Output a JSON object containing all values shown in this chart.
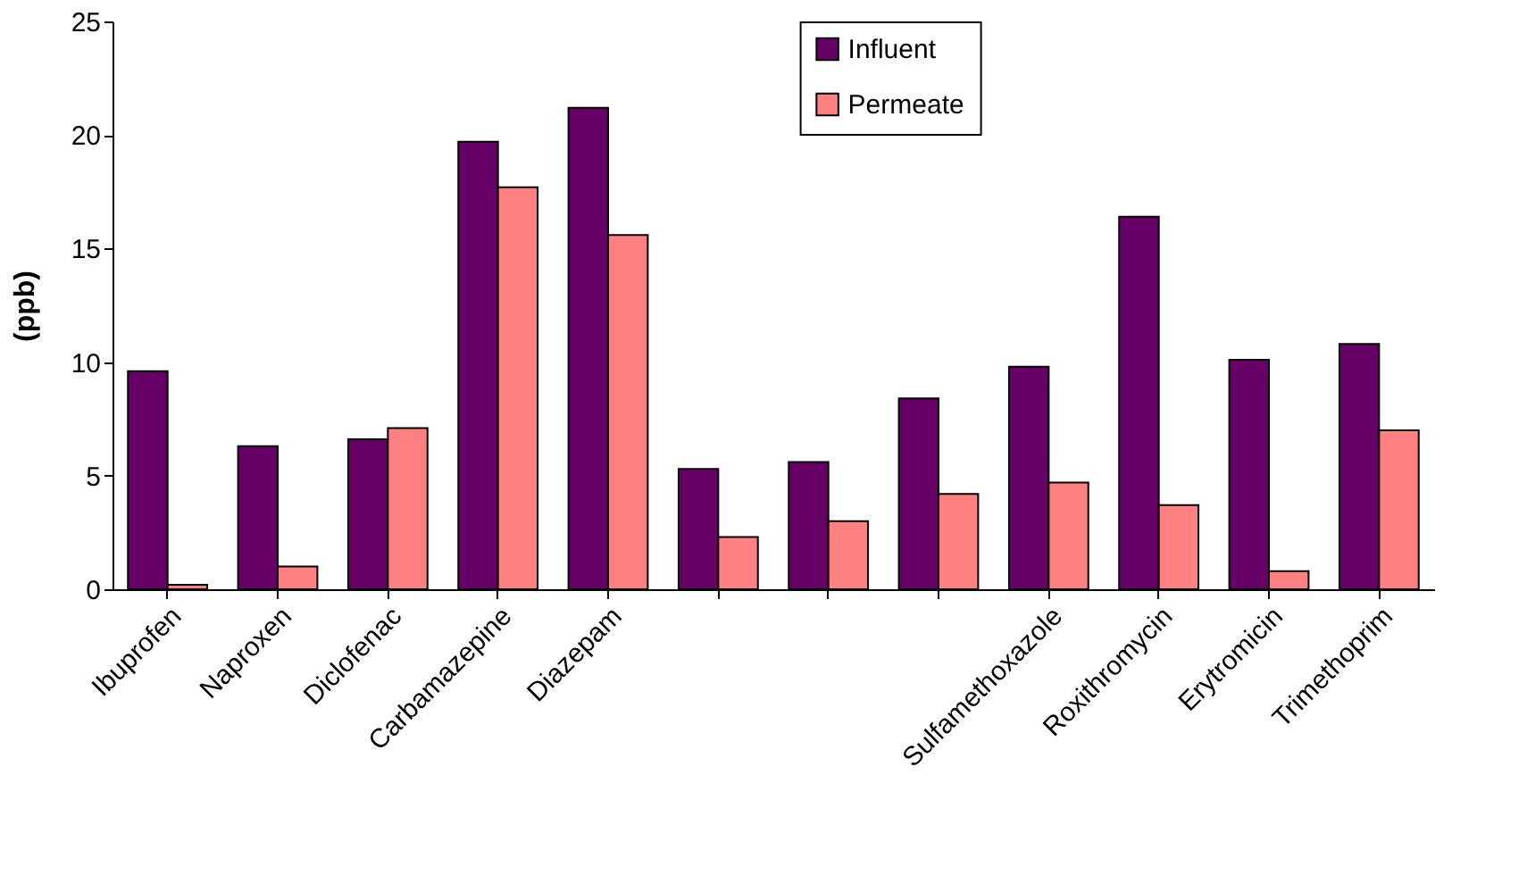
{
  "chart_data": {
    "type": "bar",
    "ylabel": "(ppb)",
    "categories": [
      "Ibuprofen",
      "Naproxen",
      "Diclofenac",
      "Carbamazepine",
      "Diazepam",
      null,
      null,
      null,
      "Sulfamethoxazole",
      "Roxithromycin",
      "Erytromicin",
      "Trimethoprim"
    ],
    "series": [
      {
        "name": "Influent",
        "color": "#660066",
        "values": [
          9.6,
          6.3,
          6.6,
          19.7,
          21.2,
          5.3,
          5.6,
          8.4,
          9.8,
          16.4,
          10.1,
          10.8
        ]
      },
      {
        "name": "Permeate",
        "color": "#ff8080",
        "values": [
          0.2,
          1.0,
          7.1,
          17.7,
          15.6,
          2.3,
          3.0,
          4.2,
          4.7,
          3.7,
          0.8,
          7.0
        ]
      }
    ],
    "ylim": [
      0,
      25
    ],
    "yticks": [
      0,
      5,
      10,
      15,
      20,
      25
    ],
    "grid": false,
    "legend": "top"
  }
}
